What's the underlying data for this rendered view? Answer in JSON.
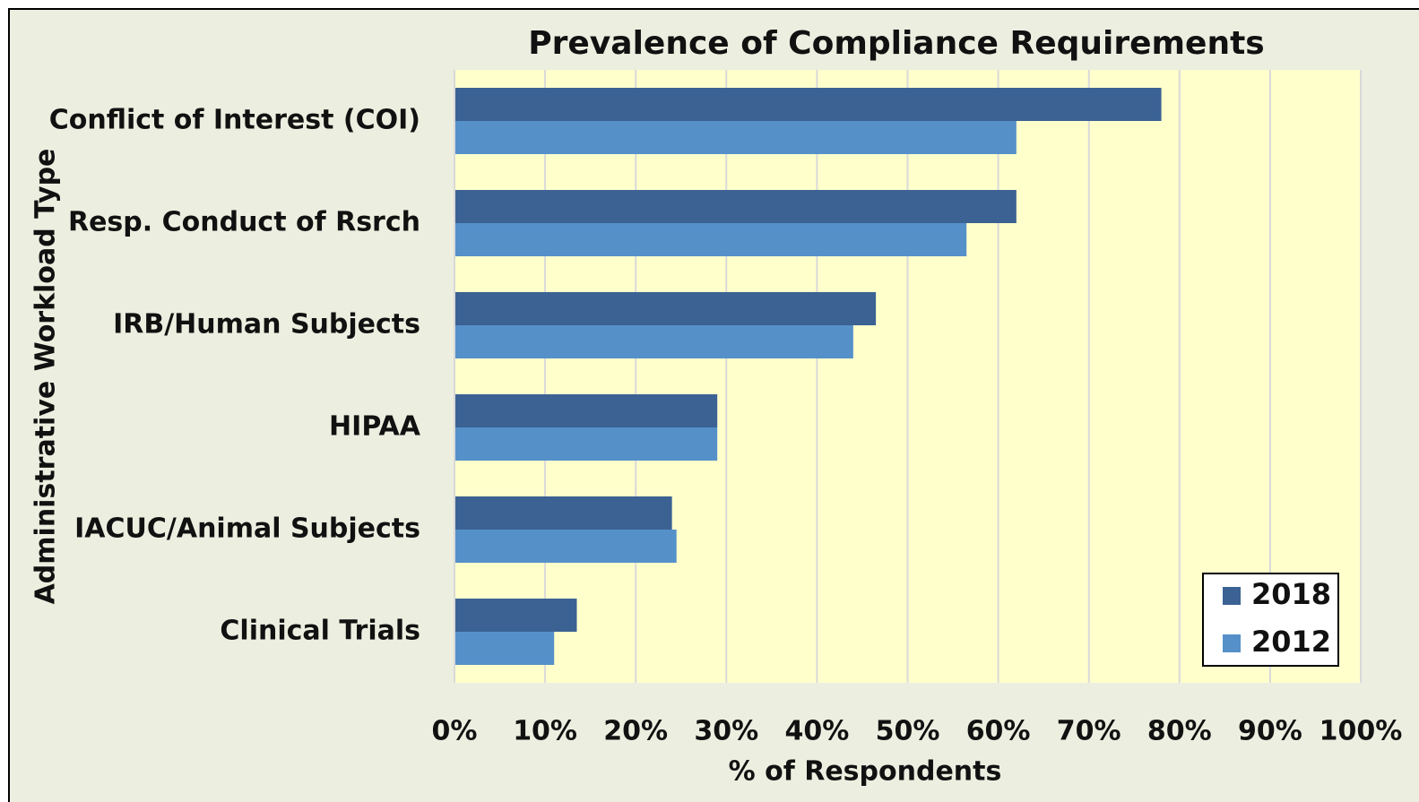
{
  "chart_data": {
    "type": "bar",
    "orientation": "horizontal",
    "title": "Prevalence of Compliance Requirements",
    "x_label": "% of Respondents",
    "y_label": "Administrative Workload Type",
    "categories": [
      "Conflict of Interest (COI)",
      "Resp. Conduct of Rsrch",
      "IRB/Human Subjects",
      "HIPAA",
      "IACUC/Animal Subjects",
      "Clinical Trials"
    ],
    "series": [
      {
        "name": "2018",
        "color": "#3b6293",
        "values": [
          78,
          62,
          46.5,
          29,
          24,
          13.5
        ]
      },
      {
        "name": "2012",
        "color": "#5590c9",
        "values": [
          62,
          56.5,
          44,
          29,
          24.5,
          11
        ]
      }
    ],
    "xlim": [
      0,
      100
    ],
    "xticks": [
      {
        "value": 0,
        "label": "0%"
      },
      {
        "value": 10,
        "label": "10%"
      },
      {
        "value": 20,
        "label": "20%"
      },
      {
        "value": 30,
        "label": "30%"
      },
      {
        "value": 40,
        "label": "40%"
      },
      {
        "value": 50,
        "label": "50%"
      },
      {
        "value": 60,
        "label": "60%"
      },
      {
        "value": 70,
        "label": "70%"
      },
      {
        "value": 80,
        "label": "80%"
      },
      {
        "value": 90,
        "label": "90%"
      },
      {
        "value": 100,
        "label": "100%"
      }
    ],
    "grid": true,
    "legend": "lower right"
  }
}
